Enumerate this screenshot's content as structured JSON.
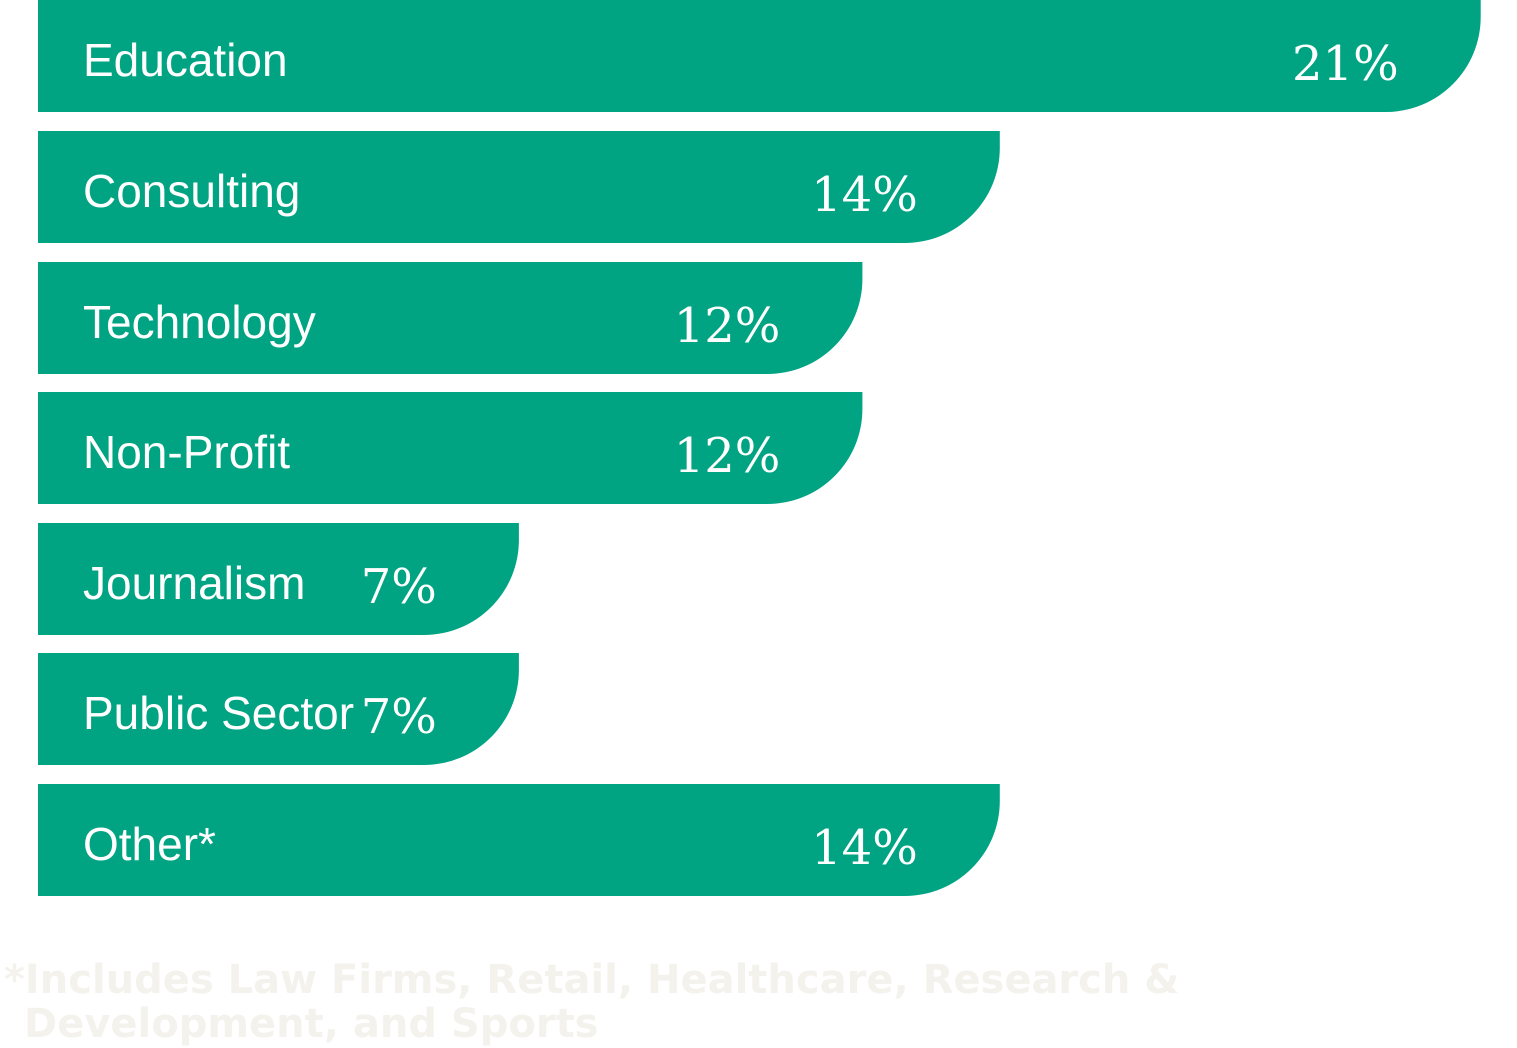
{
  "chart_data": {
    "type": "bar",
    "orientation": "horizontal",
    "categories": [
      "Education",
      "Consulting",
      "Technology",
      "Non-Profit",
      "Journalism",
      "Public Sector",
      "Other*"
    ],
    "values": [
      21,
      14,
      12,
      12,
      7,
      7,
      14
    ],
    "value_labels": [
      "21%",
      "14%",
      "12%",
      "12%",
      "7%",
      "7%",
      "14%"
    ],
    "unit": "%",
    "bar_color": "#00a482",
    "grid": false,
    "legend": "none"
  },
  "footnote": "*Includes Law Firms, Retail, Healthcare, Research & Development, and Sports"
}
